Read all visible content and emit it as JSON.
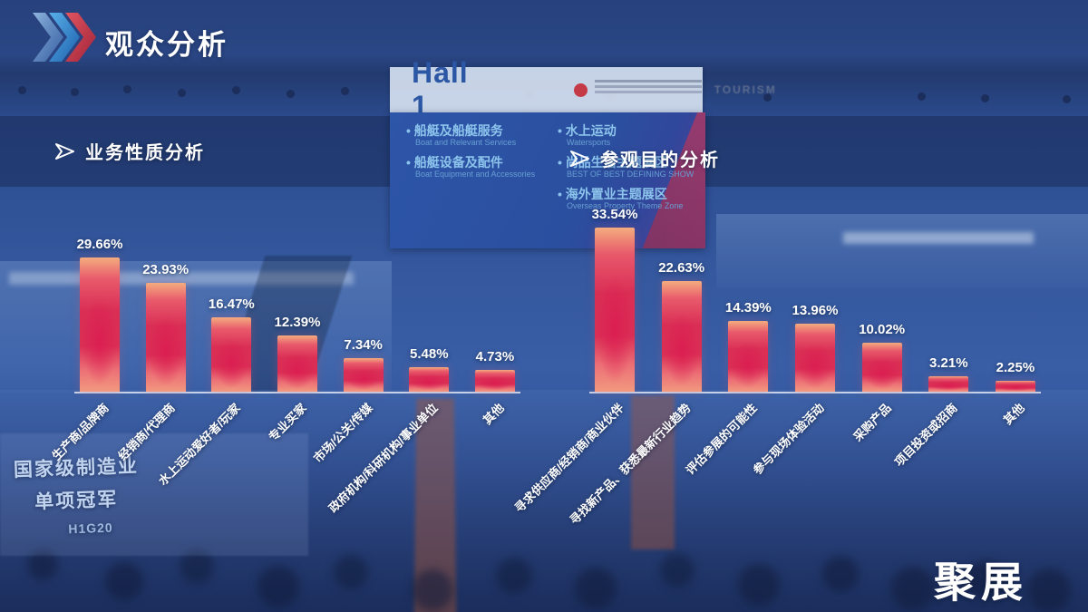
{
  "page": {
    "title": "观众分析"
  },
  "watermark": "聚展",
  "theme": {
    "bar_top": "#F4AC7F",
    "bar_core": "#DA2E55",
    "bar_glow": "#F2997F",
    "axis_line": "#E4ECF8",
    "bg_navy": "#27417D",
    "logo_light_blue": "#7FB4DE",
    "logo_blue": "#2F7CC4",
    "logo_red": "#C9344F"
  },
  "background": {
    "hall_sign": {
      "title": "Hall 1",
      "tourism_text": "TOURISM",
      "items": [
        {
          "zh": "船艇及船艇服务",
          "en": "Boat and Relevant Services"
        },
        {
          "zh": "船艇设备及配件",
          "en": "Boat Equipment and Accessories"
        },
        {
          "zh": "水上运动",
          "en": "Watersports"
        },
        {
          "zh": "尚品生活主题展区",
          "en": "BEST OF BEST DEFINING SHOW"
        },
        {
          "zh": "海外置业主题展区",
          "en": "Overseas Property Theme Zone"
        }
      ]
    },
    "booth_sign": {
      "line1": "国家级制造业",
      "line2": "单项冠军",
      "line3": "H1G20"
    }
  },
  "chart_data": [
    {
      "type": "bar",
      "title": "业务性质分析",
      "categories": [
        "生产商/品牌商",
        "经销商/代理商",
        "水上运动爱好者/玩家",
        "专业买家",
        "市场/公关/传媒",
        "政府机构/科研机构/事业单位",
        "其他"
      ],
      "values": [
        29.66,
        23.93,
        16.47,
        12.39,
        7.34,
        5.48,
        4.73
      ],
      "value_labels": [
        "29.66%",
        "23.93%",
        "16.47%",
        "12.39%",
        "7.34%",
        "5.48%",
        "4.73%"
      ],
      "unit": "%",
      "xlabel": "",
      "ylabel": "",
      "ylim": [
        0,
        35
      ],
      "grid": false,
      "legend": "none",
      "bar_style": "red-pink vertical gradient, white bold value labels above bars, category labels rotated 45deg below axis"
    },
    {
      "type": "bar",
      "title": "参观目的分析",
      "categories": [
        "寻求供应商/经销商/商业伙伴",
        "寻找新产品、获悉最新行业趋势",
        "评估参展的可能性",
        "参与现场体验活动",
        "采购产品",
        "项目投资或招商",
        "其他"
      ],
      "values": [
        33.54,
        22.63,
        14.39,
        13.96,
        10.02,
        3.21,
        2.25
      ],
      "value_labels": [
        "33.54%",
        "22.63%",
        "14.39%",
        "13.96%",
        "10.02%",
        "3.21%",
        "2.25%"
      ],
      "unit": "%",
      "xlabel": "",
      "ylabel": "",
      "ylim": [
        0,
        35
      ],
      "grid": false,
      "legend": "none",
      "bar_style": "red-pink vertical gradient, white bold value labels above bars, category labels rotated 45deg below axis"
    }
  ]
}
